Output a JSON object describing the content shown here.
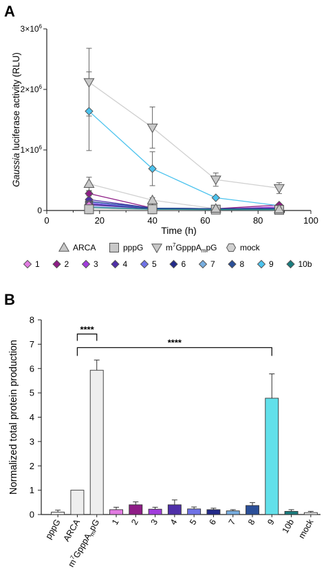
{
  "chart_data": [
    {
      "panel_label": "A",
      "type": "line",
      "xlabel": "Time (h)",
      "ylabel_italic": "Gaussia",
      "ylabel_rest": " luciferase activity (RLU)",
      "xlim": [
        0,
        100
      ],
      "ylim": [
        0,
        3000000
      ],
      "xticks": [
        0,
        20,
        40,
        60,
        80,
        100
      ],
      "ytick_labels": [
        {
          "value": 0,
          "mant": "0",
          "exp": ""
        },
        {
          "value": 1000000,
          "mant": "1×10",
          "exp": "6"
        },
        {
          "value": 2000000,
          "mant": "2×10",
          "exp": "6"
        },
        {
          "value": 3000000,
          "mant": "3×10",
          "exp": "6"
        }
      ],
      "x": [
        16,
        40,
        64,
        88
      ],
      "series": [
        {
          "name": "ARCA",
          "marker": "triangle-up",
          "color": "#c8c8c8",
          "line": "#d0d0d0",
          "values": [
            440000,
            170000,
            30000,
            20000
          ],
          "err": [
            110000,
            40000,
            10000,
            8000
          ]
        },
        {
          "name": "pppG",
          "marker": "square",
          "color": "#c8c8c8",
          "line": "#d0d0d0",
          "values": [
            20000,
            20000,
            15000,
            10000
          ],
          "err": [
            0,
            0,
            0,
            0
          ]
        },
        {
          "name_base": "m",
          "name_sup": "7",
          "name_mid": "GpppA",
          "name_sub": "m",
          "name_end": "pG",
          "marker": "triangle-down",
          "color": "#c8c8c8",
          "line": "#d0d0d0",
          "values": [
            2120000,
            1370000,
            510000,
            370000
          ],
          "err": [
            560000,
            340000,
            110000,
            90000
          ]
        },
        {
          "name": "mock",
          "marker": "hexagon",
          "color": "#d0d0d0",
          "line": "#d8d8d8",
          "values": [
            10000,
            10000,
            10000,
            10000
          ],
          "err": [
            0,
            0,
            0,
            0
          ]
        },
        {
          "name": "1",
          "marker": "diamond",
          "color": "#e27be2",
          "line": "#e27be2",
          "values": [
            90000,
            30000,
            20000,
            20000
          ],
          "err": [
            0,
            0,
            0,
            0
          ]
        },
        {
          "name": "2",
          "marker": "diamond",
          "color": "#8e1d86",
          "line": "#8e1d86",
          "values": [
            280000,
            40000,
            30000,
            90000
          ],
          "err": [
            40000,
            0,
            0,
            0
          ]
        },
        {
          "name": "3",
          "marker": "diamond",
          "color": "#a13cdc",
          "line": "#a13cdc",
          "values": [
            110000,
            30000,
            20000,
            60000
          ],
          "err": [
            0,
            0,
            0,
            0
          ]
        },
        {
          "name": "4",
          "marker": "diamond",
          "color": "#4f2fa8",
          "line": "#4f2fa8",
          "values": [
            180000,
            40000,
            30000,
            40000
          ],
          "err": [
            0,
            0,
            0,
            0
          ]
        },
        {
          "name": "5",
          "marker": "diamond",
          "color": "#6f72e6",
          "line": "#6f72e6",
          "values": [
            130000,
            30000,
            20000,
            30000
          ],
          "err": [
            0,
            0,
            0,
            0
          ]
        },
        {
          "name": "6",
          "marker": "diamond",
          "color": "#232a8a",
          "line": "#232a8a",
          "values": [
            100000,
            30000,
            20000,
            20000
          ],
          "err": [
            0,
            0,
            0,
            0
          ]
        },
        {
          "name": "7",
          "marker": "diamond",
          "color": "#78aee0",
          "line": "#78aee0",
          "values": [
            70000,
            20000,
            15000,
            15000
          ],
          "err": [
            0,
            0,
            0,
            0
          ]
        },
        {
          "name": "8",
          "marker": "diamond",
          "color": "#2b4f98",
          "line": "#2b4f98",
          "values": [
            150000,
            40000,
            30000,
            30000
          ],
          "err": [
            0,
            0,
            0,
            0
          ]
        },
        {
          "name": "9",
          "marker": "diamond",
          "color": "#4cc3ee",
          "line": "#4cc3ee",
          "values": [
            1640000,
            690000,
            210000,
            80000
          ],
          "err": [
            650000,
            280000,
            0,
            0
          ]
        },
        {
          "name": "10b",
          "marker": "diamond",
          "color": "#1a7c7e",
          "line": "#1a7c7e",
          "values": [
            50000,
            20000,
            15000,
            15000
          ],
          "err": [
            0,
            0,
            0,
            0
          ]
        }
      ]
    },
    {
      "panel_label": "B",
      "type": "bar",
      "ylabel": "Normalized total protein production",
      "ylim": [
        0,
        8
      ],
      "yticks": [
        0,
        1,
        2,
        3,
        4,
        5,
        6,
        7,
        8
      ],
      "categories": [
        {
          "label": "pppG"
        },
        {
          "label": "ARCA"
        },
        {
          "label_base": "m",
          "label_sup": "7",
          "label_mid": "GpppA",
          "label_sub": "m",
          "label_end": "pG"
        },
        {
          "label": "1"
        },
        {
          "label": "2"
        },
        {
          "label": "3"
        },
        {
          "label": "4"
        },
        {
          "label": "5"
        },
        {
          "label": "6"
        },
        {
          "label": "7"
        },
        {
          "label": "8"
        },
        {
          "label": "9"
        },
        {
          "label": "10b"
        },
        {
          "label": "mock"
        }
      ],
      "values": [
        0.1,
        1.0,
        5.93,
        0.2,
        0.4,
        0.22,
        0.4,
        0.23,
        0.2,
        0.15,
        0.37,
        4.78,
        0.13,
        0.08
      ],
      "errors": [
        0.08,
        0,
        0.42,
        0.1,
        0.12,
        0.08,
        0.2,
        0.08,
        0.06,
        0.05,
        0.12,
        1.0,
        0.07,
        0.05
      ],
      "colors": [
        "#eeeeee",
        "#eeeeee",
        "#eeeeee",
        "#e27be2",
        "#8e1d86",
        "#a13cdc",
        "#4f2fa8",
        "#6f72e6",
        "#232a8a",
        "#78aee0",
        "#2b4f98",
        "#62e0ea",
        "#1a7c7e",
        "#eeeeee"
      ],
      "annotations": [
        {
          "from": 1,
          "to": 2,
          "text": "****"
        },
        {
          "from": 1,
          "to": 11,
          "text": "****"
        }
      ]
    }
  ]
}
